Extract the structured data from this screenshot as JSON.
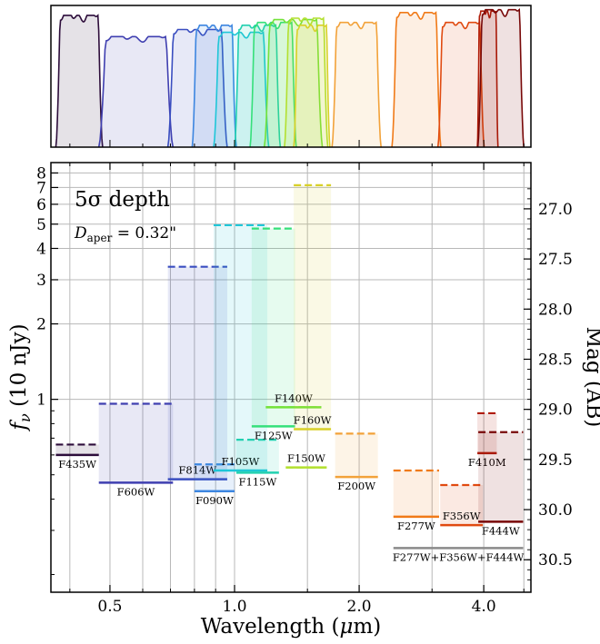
{
  "chart_data": [
    {
      "type": "line",
      "title": "",
      "description_note": "",
      "x_scale": "log",
      "xlim": [
        0.36,
        5.2
      ],
      "ylim": [
        0,
        1
      ],
      "curves": [
        {
          "name": "F435W",
          "color": "#2d0d3b",
          "lo": 0.37,
          "hi": 0.48,
          "peak": 0.93
        },
        {
          "name": "F606W",
          "color": "#3f3fb0",
          "lo": 0.47,
          "hi": 0.71,
          "peak": 0.78
        },
        {
          "name": "F814W",
          "color": "#3a4ec0",
          "lo": 0.69,
          "hi": 0.96,
          "peak": 0.83
        },
        {
          "name": "F090W",
          "color": "#3d86e0",
          "lo": 0.79,
          "hi": 1.01,
          "peak": 0.86
        },
        {
          "name": "F105W",
          "color": "#1fc6d8",
          "lo": 0.89,
          "hi": 1.21,
          "peak": 0.81
        },
        {
          "name": "F115W",
          "color": "#22d0b0",
          "lo": 1.0,
          "hi": 1.29,
          "peak": 0.86
        },
        {
          "name": "F125W",
          "color": "#35e07a",
          "lo": 1.09,
          "hi": 1.41,
          "peak": 0.88
        },
        {
          "name": "F140W",
          "color": "#74e23a",
          "lo": 1.18,
          "hi": 1.63,
          "peak": 0.9
        },
        {
          "name": "F150W",
          "color": "#b3e030",
          "lo": 1.32,
          "hi": 1.68,
          "peak": 0.91
        },
        {
          "name": "F160W",
          "color": "#d8d028",
          "lo": 1.39,
          "hi": 1.7,
          "peak": 0.86
        },
        {
          "name": "F200W",
          "color": "#f2a23a",
          "lo": 1.72,
          "hi": 2.26,
          "peak": 0.88
        },
        {
          "name": "F277W",
          "color": "#f07a18",
          "lo": 2.4,
          "hi": 3.15,
          "peak": 0.95
        },
        {
          "name": "F356W",
          "color": "#e04a10",
          "lo": 3.1,
          "hi": 4.01,
          "peak": 0.88
        },
        {
          "name": "F410M",
          "color": "#b01c08",
          "lo": 3.86,
          "hi": 4.33,
          "peak": 0.96
        },
        {
          "name": "F444W",
          "color": "#780808",
          "lo": 3.87,
          "hi": 5.0,
          "peak": 0.97
        }
      ]
    },
    {
      "type": "bar",
      "title": "5σ depth",
      "annotation": "D_aper = 0.32\"",
      "annotation_main": "D",
      "annotation_sub": "aper",
      "annotation_rest": " = 0.32\"",
      "xlabel_main": "Wavelength (",
      "xlabel_mu": "μ",
      "xlabel_unit": "m)",
      "ylabel_main": "f",
      "ylabel_sub": "ν",
      "ylabel_rest": " (10 nJy)",
      "y2label": "Mag (AB)",
      "x_scale": "log",
      "y_scale": "log",
      "xlim": [
        0.36,
        5.2
      ],
      "ylim": [
        0.17,
        8.8
      ],
      "grid": true,
      "x_ticks": [
        {
          "value": 0.5,
          "label": "0.5"
        },
        {
          "value": 1.0,
          "label": "1.0"
        },
        {
          "value": 2.0,
          "label": "2.0"
        },
        {
          "value": 4.0,
          "label": "4.0"
        }
      ],
      "y_ticks": [
        {
          "value": 1,
          "label": "1"
        },
        {
          "value": 2,
          "label": "2"
        },
        {
          "value": 3,
          "label": "3"
        },
        {
          "value": 4,
          "label": "4"
        },
        {
          "value": 5,
          "label": "5"
        },
        {
          "value": 6,
          "label": "6"
        },
        {
          "value": 7,
          "label": "7"
        },
        {
          "value": 8,
          "label": "8"
        }
      ],
      "y_minor_ticks": [
        0.2,
        0.3,
        0.4,
        0.5,
        0.6,
        0.7,
        0.8,
        0.9
      ],
      "y2_ticks": [
        {
          "value": 27.0,
          "label": "27.0"
        },
        {
          "value": 27.5,
          "label": "27.5"
        },
        {
          "value": 28.0,
          "label": "28.0"
        },
        {
          "value": 28.5,
          "label": "28.5"
        },
        {
          "value": 29.0,
          "label": "29.0"
        },
        {
          "value": 29.5,
          "label": "29.5"
        },
        {
          "value": 30.0,
          "label": "30.0"
        },
        {
          "value": 30.5,
          "label": "30.5"
        }
      ],
      "filters": [
        {
          "name": "F435W",
          "color": "#2d0d3b",
          "lo": 0.37,
          "hi": 0.47,
          "depth": 0.6,
          "shade": 0.66,
          "dashed": 0.66,
          "label_pos": "below"
        },
        {
          "name": "F606W",
          "color": "#3f3fb0",
          "lo": 0.47,
          "hi": 0.71,
          "depth": 0.465,
          "shade": 0.96,
          "dashed": 0.96,
          "label_pos": "below"
        },
        {
          "name": "F814W",
          "color": "#3a4ec0",
          "lo": 0.69,
          "hi": 0.96,
          "depth": 0.48,
          "shade": 3.38,
          "dashed": 3.38,
          "label_pos": "above"
        },
        {
          "name": "F090W",
          "color": "#3d86e0",
          "lo": 0.8,
          "hi": 1.0,
          "depth": 0.43,
          "shade": 0.55,
          "dashed": 0.55,
          "label_pos": "below"
        },
        {
          "name": "F105W",
          "color": "#1fc6d8",
          "lo": 0.89,
          "hi": 1.2,
          "depth": 0.52,
          "shade": 4.95,
          "dashed": 4.95,
          "label_pos": "above"
        },
        {
          "name": "F115W",
          "color": "#22d0b0",
          "lo": 1.01,
          "hi": 1.28,
          "depth": 0.51,
          "shade": 0.69,
          "dashed": 0.69,
          "label_pos": "below"
        },
        {
          "name": "F125W",
          "color": "#35e07a",
          "lo": 1.1,
          "hi": 1.4,
          "depth": 0.78,
          "shade": 4.8,
          "dashed": 4.8,
          "label_pos": "below"
        },
        {
          "name": "F140W",
          "color": "#74e23a",
          "lo": 1.19,
          "hi": 1.62,
          "depth": 0.93,
          "shade": 0.93,
          "dashed": 0.93,
          "label_pos": "above"
        },
        {
          "name": "F150W",
          "color": "#b3e030",
          "lo": 1.33,
          "hi": 1.67,
          "depth": 0.535,
          "shade": 0.535,
          "dashed": 0.535,
          "label_pos": "above"
        },
        {
          "name": "F160W",
          "color": "#d8d028",
          "lo": 1.39,
          "hi": 1.71,
          "depth": 0.76,
          "shade": 7.15,
          "dashed": 7.15,
          "label_pos": "above"
        },
        {
          "name": "F200W",
          "color": "#f2a23a",
          "lo": 1.75,
          "hi": 2.22,
          "depth": 0.49,
          "shade": 0.73,
          "dashed": 0.73,
          "label_pos": "below"
        },
        {
          "name": "F277W",
          "color": "#f07a18",
          "lo": 2.42,
          "hi": 3.12,
          "depth": 0.34,
          "shade": 0.52,
          "dashed": 0.52,
          "label_pos": "below"
        },
        {
          "name": "F356W",
          "color": "#e04a10",
          "lo": 3.14,
          "hi": 3.98,
          "depth": 0.315,
          "shade": 0.455,
          "dashed": 0.455,
          "label_pos": "above"
        },
        {
          "name": "F410M",
          "color": "#b01c08",
          "lo": 3.86,
          "hi": 4.3,
          "depth": 0.61,
          "shade": 0.88,
          "dashed": 0.88,
          "label_pos": "below"
        },
        {
          "name": "F444W",
          "color": "#780808",
          "lo": 3.88,
          "hi": 4.98,
          "depth": 0.325,
          "shade": 0.74,
          "dashed": 0.74,
          "label_pos": "below"
        },
        {
          "name": "F277W+F356W+F444W",
          "color": "#8a8a8a",
          "lo": 2.42,
          "hi": 4.98,
          "depth": 0.255,
          "shade": null,
          "dashed": null,
          "label_pos": "below"
        }
      ]
    }
  ]
}
